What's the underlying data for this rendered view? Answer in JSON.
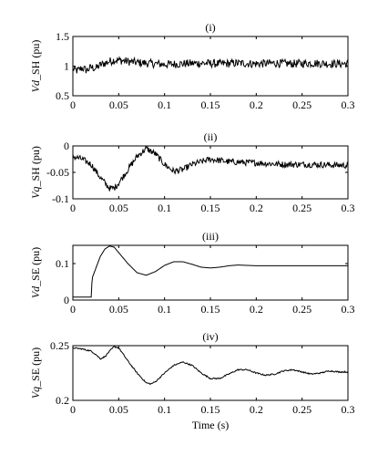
{
  "chart_data": [
    {
      "type": "line",
      "panel_label": "(i)",
      "ylabel_main": "Vd",
      "ylabel_rest": "_SH (pu)",
      "xlim": [
        0,
        0.3
      ],
      "ylim": [
        0.5,
        1.5
      ],
      "xticks": [
        "0",
        "0.05",
        "0.1",
        "0.15",
        "0.2",
        "0.25",
        "0.3"
      ],
      "yticks": [
        "0.5",
        "1",
        "1.5"
      ],
      "xlabel": "",
      "series": [
        {
          "x": [
            0,
            0.005,
            0.01,
            0.015,
            0.02,
            0.025,
            0.03,
            0.035,
            0.04,
            0.045,
            0.05,
            0.06,
            0.07,
            0.08,
            0.09,
            0.1,
            0.12,
            0.14,
            0.16,
            0.18,
            0.2,
            0.22,
            0.24,
            0.26,
            0.28,
            0.3
          ],
          "y": [
            0.95,
            0.92,
            0.97,
            0.93,
            0.98,
            0.96,
            1.02,
            1.05,
            1.08,
            1.1,
            1.1,
            1.08,
            1.06,
            1.05,
            1.04,
            1.03,
            1.04,
            1.05,
            1.04,
            1.05,
            1.04,
            1.05,
            1.04,
            1.05,
            1.04,
            1.04
          ],
          "noise": 0.07
        }
      ]
    },
    {
      "type": "line",
      "panel_label": "(ii)",
      "ylabel_main": "Vq",
      "ylabel_rest": "_SH (pu)",
      "xlim": [
        0,
        0.3
      ],
      "ylim": [
        -0.1,
        0
      ],
      "xticks": [
        "0",
        "0.05",
        "0.1",
        "0.15",
        "0.2",
        "0.25",
        "0.3"
      ],
      "yticks": [
        "-0.1",
        "-0.05",
        "0"
      ],
      "xlabel": "",
      "series": [
        {
          "x": [
            0,
            0.01,
            0.02,
            0.03,
            0.04,
            0.045,
            0.05,
            0.06,
            0.07,
            0.08,
            0.09,
            0.1,
            0.11,
            0.12,
            0.13,
            0.14,
            0.15,
            0.17,
            0.2,
            0.23,
            0.26,
            0.3
          ],
          "y": [
            -0.02,
            -0.025,
            -0.035,
            -0.06,
            -0.08,
            -0.08,
            -0.07,
            -0.045,
            -0.02,
            -0.005,
            -0.015,
            -0.035,
            -0.048,
            -0.045,
            -0.035,
            -0.03,
            -0.025,
            -0.03,
            -0.032,
            -0.035,
            -0.035,
            -0.037
          ],
          "noise": 0.006
        }
      ]
    },
    {
      "type": "line",
      "panel_label": "(iii)",
      "ylabel_main": "Vd",
      "ylabel_rest": "_SE (pu)",
      "xlim": [
        0,
        0.3
      ],
      "ylim": [
        0,
        0.15
      ],
      "xticks": [
        "0",
        "0.05",
        "0.1",
        "0.15",
        "0.2",
        "0.25",
        "0.3"
      ],
      "yticks": [
        "0",
        "0.1"
      ],
      "xlabel": "",
      "series": [
        {
          "x": [
            0,
            0.019,
            0.02,
            0.021,
            0.03,
            0.035,
            0.04,
            0.045,
            0.05,
            0.06,
            0.07,
            0.08,
            0.09,
            0.1,
            0.11,
            0.12,
            0.13,
            0.14,
            0.15,
            0.16,
            0.17,
            0.18,
            0.19,
            0.2,
            0.22,
            0.25,
            0.3
          ],
          "y": [
            0.008,
            0.008,
            0.008,
            0.06,
            0.12,
            0.14,
            0.148,
            0.145,
            0.13,
            0.1,
            0.075,
            0.068,
            0.078,
            0.095,
            0.105,
            0.105,
            0.098,
            0.09,
            0.088,
            0.09,
            0.094,
            0.096,
            0.095,
            0.094,
            0.094,
            0.094,
            0.094
          ],
          "noise": 0
        }
      ]
    },
    {
      "type": "line",
      "panel_label": "(iv)",
      "ylabel_main": "Vq",
      "ylabel_rest": "_SE (pu)",
      "xlim": [
        0,
        0.3
      ],
      "ylim": [
        0.2,
        0.25
      ],
      "xticks": [
        "0",
        "0.05",
        "0.1",
        "0.15",
        "0.2",
        "0.25",
        "0.3"
      ],
      "yticks": [
        "0.2",
        "0.25"
      ],
      "xlabel": "Time (s)",
      "series": [
        {
          "x": [
            0,
            0.01,
            0.02,
            0.025,
            0.03,
            0.035,
            0.04,
            0.045,
            0.05,
            0.055,
            0.06,
            0.07,
            0.08,
            0.085,
            0.09,
            0.1,
            0.11,
            0.12,
            0.13,
            0.14,
            0.15,
            0.16,
            0.17,
            0.18,
            0.19,
            0.2,
            0.21,
            0.22,
            0.23,
            0.24,
            0.25,
            0.26,
            0.27,
            0.28,
            0.29,
            0.3
          ],
          "y": [
            0.248,
            0.247,
            0.245,
            0.242,
            0.238,
            0.24,
            0.245,
            0.249,
            0.248,
            0.242,
            0.236,
            0.225,
            0.216,
            0.215,
            0.217,
            0.225,
            0.232,
            0.235,
            0.232,
            0.225,
            0.22,
            0.22,
            0.224,
            0.228,
            0.228,
            0.225,
            0.223,
            0.224,
            0.227,
            0.228,
            0.226,
            0.224,
            0.225,
            0.227,
            0.226,
            0.226
          ],
          "noise": 0.0006
        }
      ]
    }
  ]
}
